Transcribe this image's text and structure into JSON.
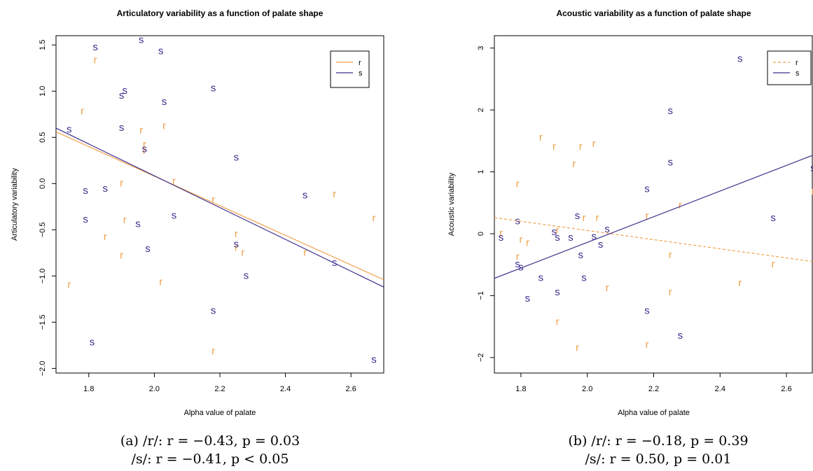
{
  "colors": {
    "r": "#F0A04B",
    "s": "#3C2E8C"
  },
  "chart_data": [
    {
      "type": "scatter",
      "title": "Articulatory variability as a function of palate shape",
      "xlabel": "Alpha value of palate",
      "ylabel": "Articulatory variability",
      "xlim": [
        1.7,
        2.7
      ],
      "ylim": [
        -2.05,
        1.6
      ],
      "xticks": [
        "1.8",
        "2.0",
        "2.2",
        "2.4",
        "2.6"
      ],
      "yticks": [
        "-2.0",
        "-1.5",
        "-1.0",
        "-0.5",
        "0.0",
        "0.5",
        "1.0",
        "1.5"
      ],
      "legend": {
        "position": "top-right",
        "entries": [
          "r",
          "s"
        ]
      },
      "series": [
        {
          "name": "r",
          "marker": "r",
          "fit_line": {
            "x": [
              1.7,
              2.7
            ],
            "y": [
              0.56,
              -1.04
            ],
            "style": "solid"
          },
          "points": [
            [
              1.74,
              -1.1
            ],
            [
              1.78,
              0.78
            ],
            [
              1.82,
              1.33
            ],
            [
              1.85,
              -0.58
            ],
            [
              1.9,
              0.0
            ],
            [
              1.9,
              -0.78
            ],
            [
              1.91,
              -0.4
            ],
            [
              1.96,
              0.57
            ],
            [
              1.97,
              0.42
            ],
            [
              1.97,
              0.35
            ],
            [
              2.02,
              -1.07
            ],
            [
              2.03,
              0.62
            ],
            [
              2.06,
              0.02
            ],
            [
              2.18,
              -0.18
            ],
            [
              2.18,
              -1.82
            ],
            [
              2.25,
              -0.55
            ],
            [
              2.25,
              -0.7
            ],
            [
              2.27,
              -0.75
            ],
            [
              2.46,
              -0.75
            ],
            [
              2.55,
              -0.12
            ],
            [
              2.67,
              -0.38
            ]
          ]
        },
        {
          "name": "s",
          "marker": "s",
          "fit_line": {
            "x": [
              1.7,
              2.7
            ],
            "y": [
              0.6,
              -1.12
            ],
            "style": "solid"
          },
          "points": [
            [
              1.74,
              0.58
            ],
            [
              1.79,
              -0.08
            ],
            [
              1.79,
              -0.39
            ],
            [
              1.81,
              -1.72
            ],
            [
              1.82,
              1.47
            ],
            [
              1.85,
              -0.06
            ],
            [
              1.9,
              0.6
            ],
            [
              1.9,
              0.95
            ],
            [
              1.91,
              1.0
            ],
            [
              1.95,
              -0.44
            ],
            [
              1.96,
              1.55
            ],
            [
              1.97,
              0.37
            ],
            [
              1.98,
              -0.71
            ],
            [
              2.02,
              1.43
            ],
            [
              2.03,
              0.88
            ],
            [
              2.06,
              -0.35
            ],
            [
              2.18,
              1.03
            ],
            [
              2.18,
              -1.38
            ],
            [
              2.25,
              0.28
            ],
            [
              2.25,
              -0.66
            ],
            [
              2.28,
              -1.0
            ],
            [
              2.46,
              -0.13
            ],
            [
              2.55,
              -0.86
            ],
            [
              2.67,
              -1.91
            ]
          ]
        }
      ]
    },
    {
      "type": "scatter",
      "title": "Acoustic variability as a function of palate shape",
      "xlabel": "Alpha value of palate",
      "ylabel": "Acoustic variability",
      "xlim": [
        1.72,
        2.68
      ],
      "ylim": [
        -2.25,
        3.2
      ],
      "xticks": [
        "1.8",
        "2.0",
        "2.2",
        "2.4",
        "2.6"
      ],
      "yticks": [
        "-2",
        "-1",
        "0",
        "1",
        "2",
        "3"
      ],
      "legend": {
        "position": "top-right",
        "entries": [
          "r",
          "s"
        ]
      },
      "series": [
        {
          "name": "r",
          "marker": "r",
          "fit_line": {
            "x": [
              1.72,
              2.68
            ],
            "y": [
              0.26,
              -0.45
            ],
            "style": "dashed"
          },
          "points": [
            [
              1.74,
              0.0
            ],
            [
              1.79,
              0.8
            ],
            [
              1.79,
              -0.38
            ],
            [
              1.8,
              -0.1
            ],
            [
              1.82,
              -0.15
            ],
            [
              1.86,
              1.55
            ],
            [
              1.9,
              1.4
            ],
            [
              1.91,
              -1.43
            ],
            [
              1.91,
              0.05
            ],
            [
              1.96,
              1.12
            ],
            [
              1.97,
              -1.85
            ],
            [
              1.98,
              1.4
            ],
            [
              1.99,
              0.25
            ],
            [
              2.02,
              1.45
            ],
            [
              2.03,
              0.25
            ],
            [
              2.06,
              -0.88
            ],
            [
              2.18,
              0.28
            ],
            [
              2.18,
              -1.8
            ],
            [
              2.25,
              -0.35
            ],
            [
              2.25,
              -0.95
            ],
            [
              2.28,
              0.45
            ],
            [
              2.46,
              -0.8
            ],
            [
              2.56,
              -0.5
            ],
            [
              2.68,
              0.68
            ]
          ]
        },
        {
          "name": "s",
          "marker": "s",
          "fit_line": {
            "x": [
              1.72,
              2.68
            ],
            "y": [
              -0.72,
              1.27
            ],
            "style": "solid"
          },
          "points": [
            [
              1.74,
              -0.07
            ],
            [
              1.79,
              0.2
            ],
            [
              1.79,
              -0.5
            ],
            [
              1.8,
              -0.55
            ],
            [
              1.82,
              -1.05
            ],
            [
              1.86,
              -0.72
            ],
            [
              1.9,
              0.02
            ],
            [
              1.91,
              -0.07
            ],
            [
              1.91,
              -0.95
            ],
            [
              1.95,
              -0.07
            ],
            [
              1.97,
              0.28
            ],
            [
              1.98,
              -0.35
            ],
            [
              1.99,
              -0.72
            ],
            [
              2.02,
              -0.05
            ],
            [
              2.04,
              -0.18
            ],
            [
              2.06,
              0.07
            ],
            [
              2.18,
              0.72
            ],
            [
              2.18,
              -1.25
            ],
            [
              2.25,
              1.98
            ],
            [
              2.25,
              1.15
            ],
            [
              2.28,
              -1.65
            ],
            [
              2.46,
              2.82
            ],
            [
              2.56,
              0.25
            ],
            [
              2.68,
              1.05
            ]
          ]
        }
      ]
    }
  ],
  "captions": [
    {
      "line1": "(a) /r/: r = −0.43, p = 0.03",
      "line2": "/s/: r = −0.41, p < 0.05"
    },
    {
      "line1": "(b) /r/: r = −0.18, p = 0.39",
      "line2": "/s/: r = 0.50, p = 0.01"
    }
  ]
}
